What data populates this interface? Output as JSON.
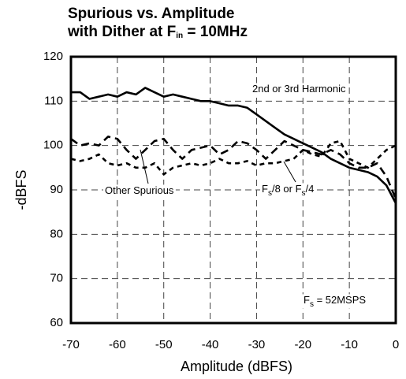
{
  "chart_data": {
    "type": "line",
    "title": [
      [
        "Spurious vs. Amplitude"
      ],
      [
        "with Dither at F",
        "in",
        " = 10MHz"
      ]
    ],
    "xlabel": "Amplitude (dBFS)",
    "ylabel": "-dBFS",
    "x": [
      -70,
      -68,
      -66,
      -64,
      -62,
      -60,
      -58,
      -56,
      -54,
      -52,
      -50,
      -48,
      -46,
      -44,
      -42,
      -40,
      -38,
      -36,
      -34,
      -32,
      -30,
      -28,
      -26,
      -24,
      -22,
      -20,
      -18,
      -16,
      -14,
      -12,
      -10,
      -8,
      -6,
      -4,
      -2,
      0
    ],
    "series": [
      {
        "color": "#000000",
        "dash": "solid",
        "values": [
          112,
          112,
          110.5,
          111,
          111.5,
          111,
          112,
          111.5,
          113,
          112,
          111,
          111.5,
          111,
          110.5,
          110,
          110,
          109.5,
          109,
          109,
          108.5,
          107,
          105.5,
          104,
          102.5,
          101.5,
          100.5,
          99.5,
          98.5,
          97,
          96,
          95,
          94.5,
          94,
          93,
          91,
          87
        ]
      },
      {
        "color": "#000000",
        "dash": "long",
        "values": [
          101.5,
          100,
          100.5,
          100,
          102,
          101.5,
          99,
          97,
          99,
          101,
          101.5,
          99,
          97,
          99,
          99.5,
          100,
          98,
          99,
          101,
          100.5,
          99,
          97,
          99,
          101,
          100,
          99,
          98.5,
          98,
          99,
          98,
          96,
          95,
          95,
          96,
          93,
          88
        ]
      },
      {
        "color": "#000000",
        "dash": "short",
        "values": [
          97,
          96.5,
          97,
          98,
          96,
          95.5,
          96,
          95,
          95,
          96,
          93.5,
          95,
          95.5,
          96,
          95.5,
          96,
          97,
          96,
          96,
          96.5,
          95.5,
          96,
          96,
          96.5,
          97,
          99,
          98,
          97.5,
          100.5,
          101,
          97,
          96,
          95,
          97,
          99,
          100
        ]
      }
    ],
    "annotations": [
      [
        "2nd or 3rd Harmonic"
      ],
      [
        "Other Spurious"
      ],
      [
        "F",
        "s",
        "/8 or F",
        "s",
        "/4"
      ],
      [
        "F",
        "s",
        " = 52MSPS"
      ]
    ],
    "xlim": [
      -70,
      0
    ],
    "xticks": [
      -70,
      -60,
      -50,
      -40,
      -30,
      -20,
      -10,
      0
    ],
    "ylim": [
      60,
      120
    ],
    "yticks": [
      60,
      70,
      80,
      90,
      100,
      110,
      120
    ],
    "grid": true
  }
}
